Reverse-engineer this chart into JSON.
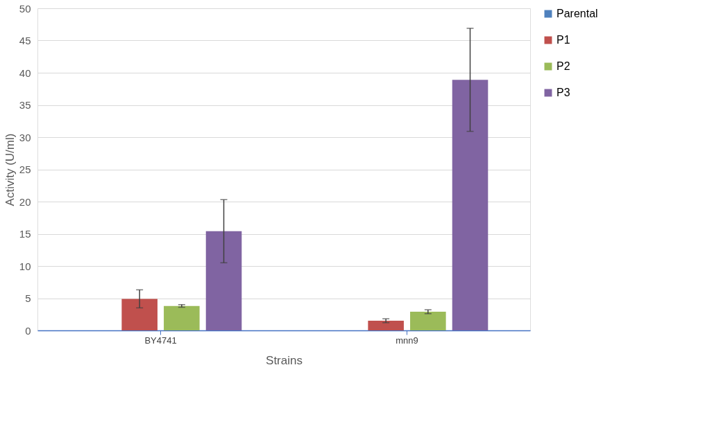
{
  "chart_data": {
    "type": "bar",
    "xlabel": "Strains",
    "ylabel": "Activity (U/ml)",
    "categories": [
      "BY4741",
      "mnn9"
    ],
    "series": [
      {
        "name": "Parental",
        "color": "#4f81bd",
        "values": [
          0,
          0
        ],
        "errors": [
          null,
          null
        ]
      },
      {
        "name": "P1",
        "color": "#c0504d",
        "values": [
          4.9,
          1.5
        ],
        "errors": [
          1.4,
          0.3
        ]
      },
      {
        "name": "P2",
        "color": "#9bbb59",
        "values": [
          3.8,
          2.9
        ],
        "errors": [
          0.2,
          0.3
        ]
      },
      {
        "name": "P3",
        "color": "#8064a2",
        "values": [
          15.4,
          38.9
        ],
        "errors": [
          4.9,
          8.0
        ]
      }
    ],
    "ylim": [
      0,
      50
    ],
    "yticks": [
      0,
      5,
      10,
      15,
      20,
      25,
      30,
      35,
      40,
      45,
      50
    ],
    "grid": "y",
    "legend": "right"
  }
}
